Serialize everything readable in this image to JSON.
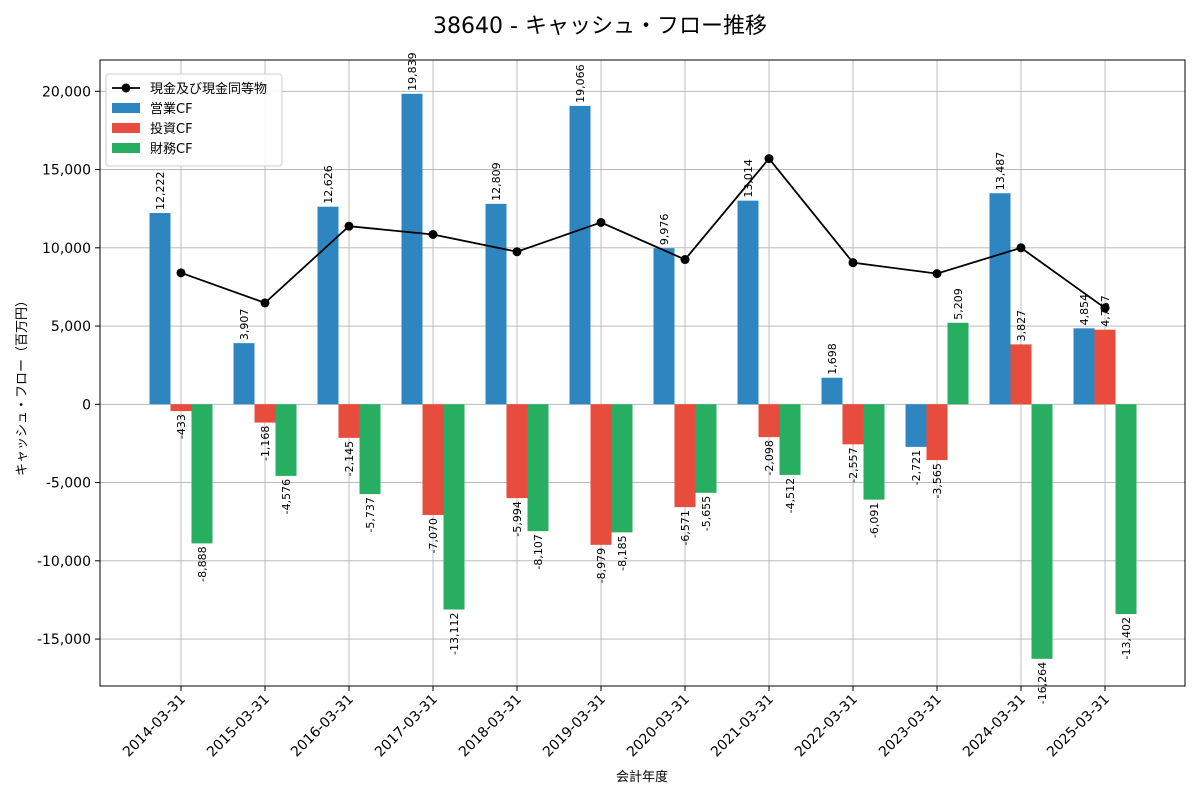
{
  "chart_data": {
    "type": "bar",
    "title": "38640 - キャッシュ・フロー推移",
    "xlabel": "会計年度",
    "ylabel": "キャッシュ・フロー（百万円）",
    "ylim": [
      -18000,
      22000
    ],
    "yticks": [
      -15000,
      -10000,
      -5000,
      0,
      5000,
      10000,
      15000,
      20000
    ],
    "ytick_labels": [
      "-15,000",
      "-10,000",
      "-5,000",
      "0",
      "5,000",
      "10,000",
      "15,000",
      "20,000"
    ],
    "grid": true,
    "legend_position": "top-left",
    "categories": [
      "2014-03-31",
      "2015-03-31",
      "2016-03-31",
      "2017-03-31",
      "2018-03-31",
      "2019-03-31",
      "2020-03-31",
      "2021-03-31",
      "2022-03-31",
      "2023-03-31",
      "2024-03-31",
      "2025-03-31"
    ],
    "series": [
      {
        "name": "営業CF",
        "color": "#2e86c1",
        "values": [
          12222,
          3907,
          12626,
          19839,
          12809,
          19066,
          9976,
          13014,
          1698,
          -2721,
          13487,
          4854
        ],
        "labels": [
          "12,222",
          "3,907",
          "12,626",
          "19,839",
          "12,809",
          "19,066",
          "9,976",
          "13,014",
          "1,698",
          "-2,721",
          "13,487",
          "4,854"
        ]
      },
      {
        "name": "投資CF",
        "color": "#e74c3c",
        "values": [
          -433,
          -1168,
          -2145,
          -7070,
          -5994,
          -8979,
          -6571,
          -2098,
          -2557,
          -3565,
          3827,
          4767
        ],
        "labels": [
          "-433",
          "-1,168",
          "-2,145",
          "-7,070",
          "-5,994",
          "-8,979",
          "-6,571",
          "-2,098",
          "-2,557",
          "-3,565",
          "3,827",
          "4,767"
        ]
      },
      {
        "name": "財務CF",
        "color": "#27ae60",
        "values": [
          -8888,
          -4576,
          -5737,
          -13112,
          -8107,
          -8185,
          -5655,
          -4512,
          -6091,
          5209,
          -16264,
          -13402
        ],
        "labels": [
          "-8,888",
          "-4,576",
          "-5,737",
          "-13,112",
          "-8,107",
          "-8,185",
          "-5,655",
          "-4,512",
          "-6,091",
          "5,209",
          "-16,264",
          "-13,402"
        ]
      }
    ],
    "line_series": {
      "name": "現金及び現金同等物",
      "color": "#000000",
      "values": [
        8400,
        6480,
        11380,
        10850,
        9750,
        11620,
        9250,
        15700,
        9050,
        8350,
        10000,
        6150
      ]
    }
  }
}
